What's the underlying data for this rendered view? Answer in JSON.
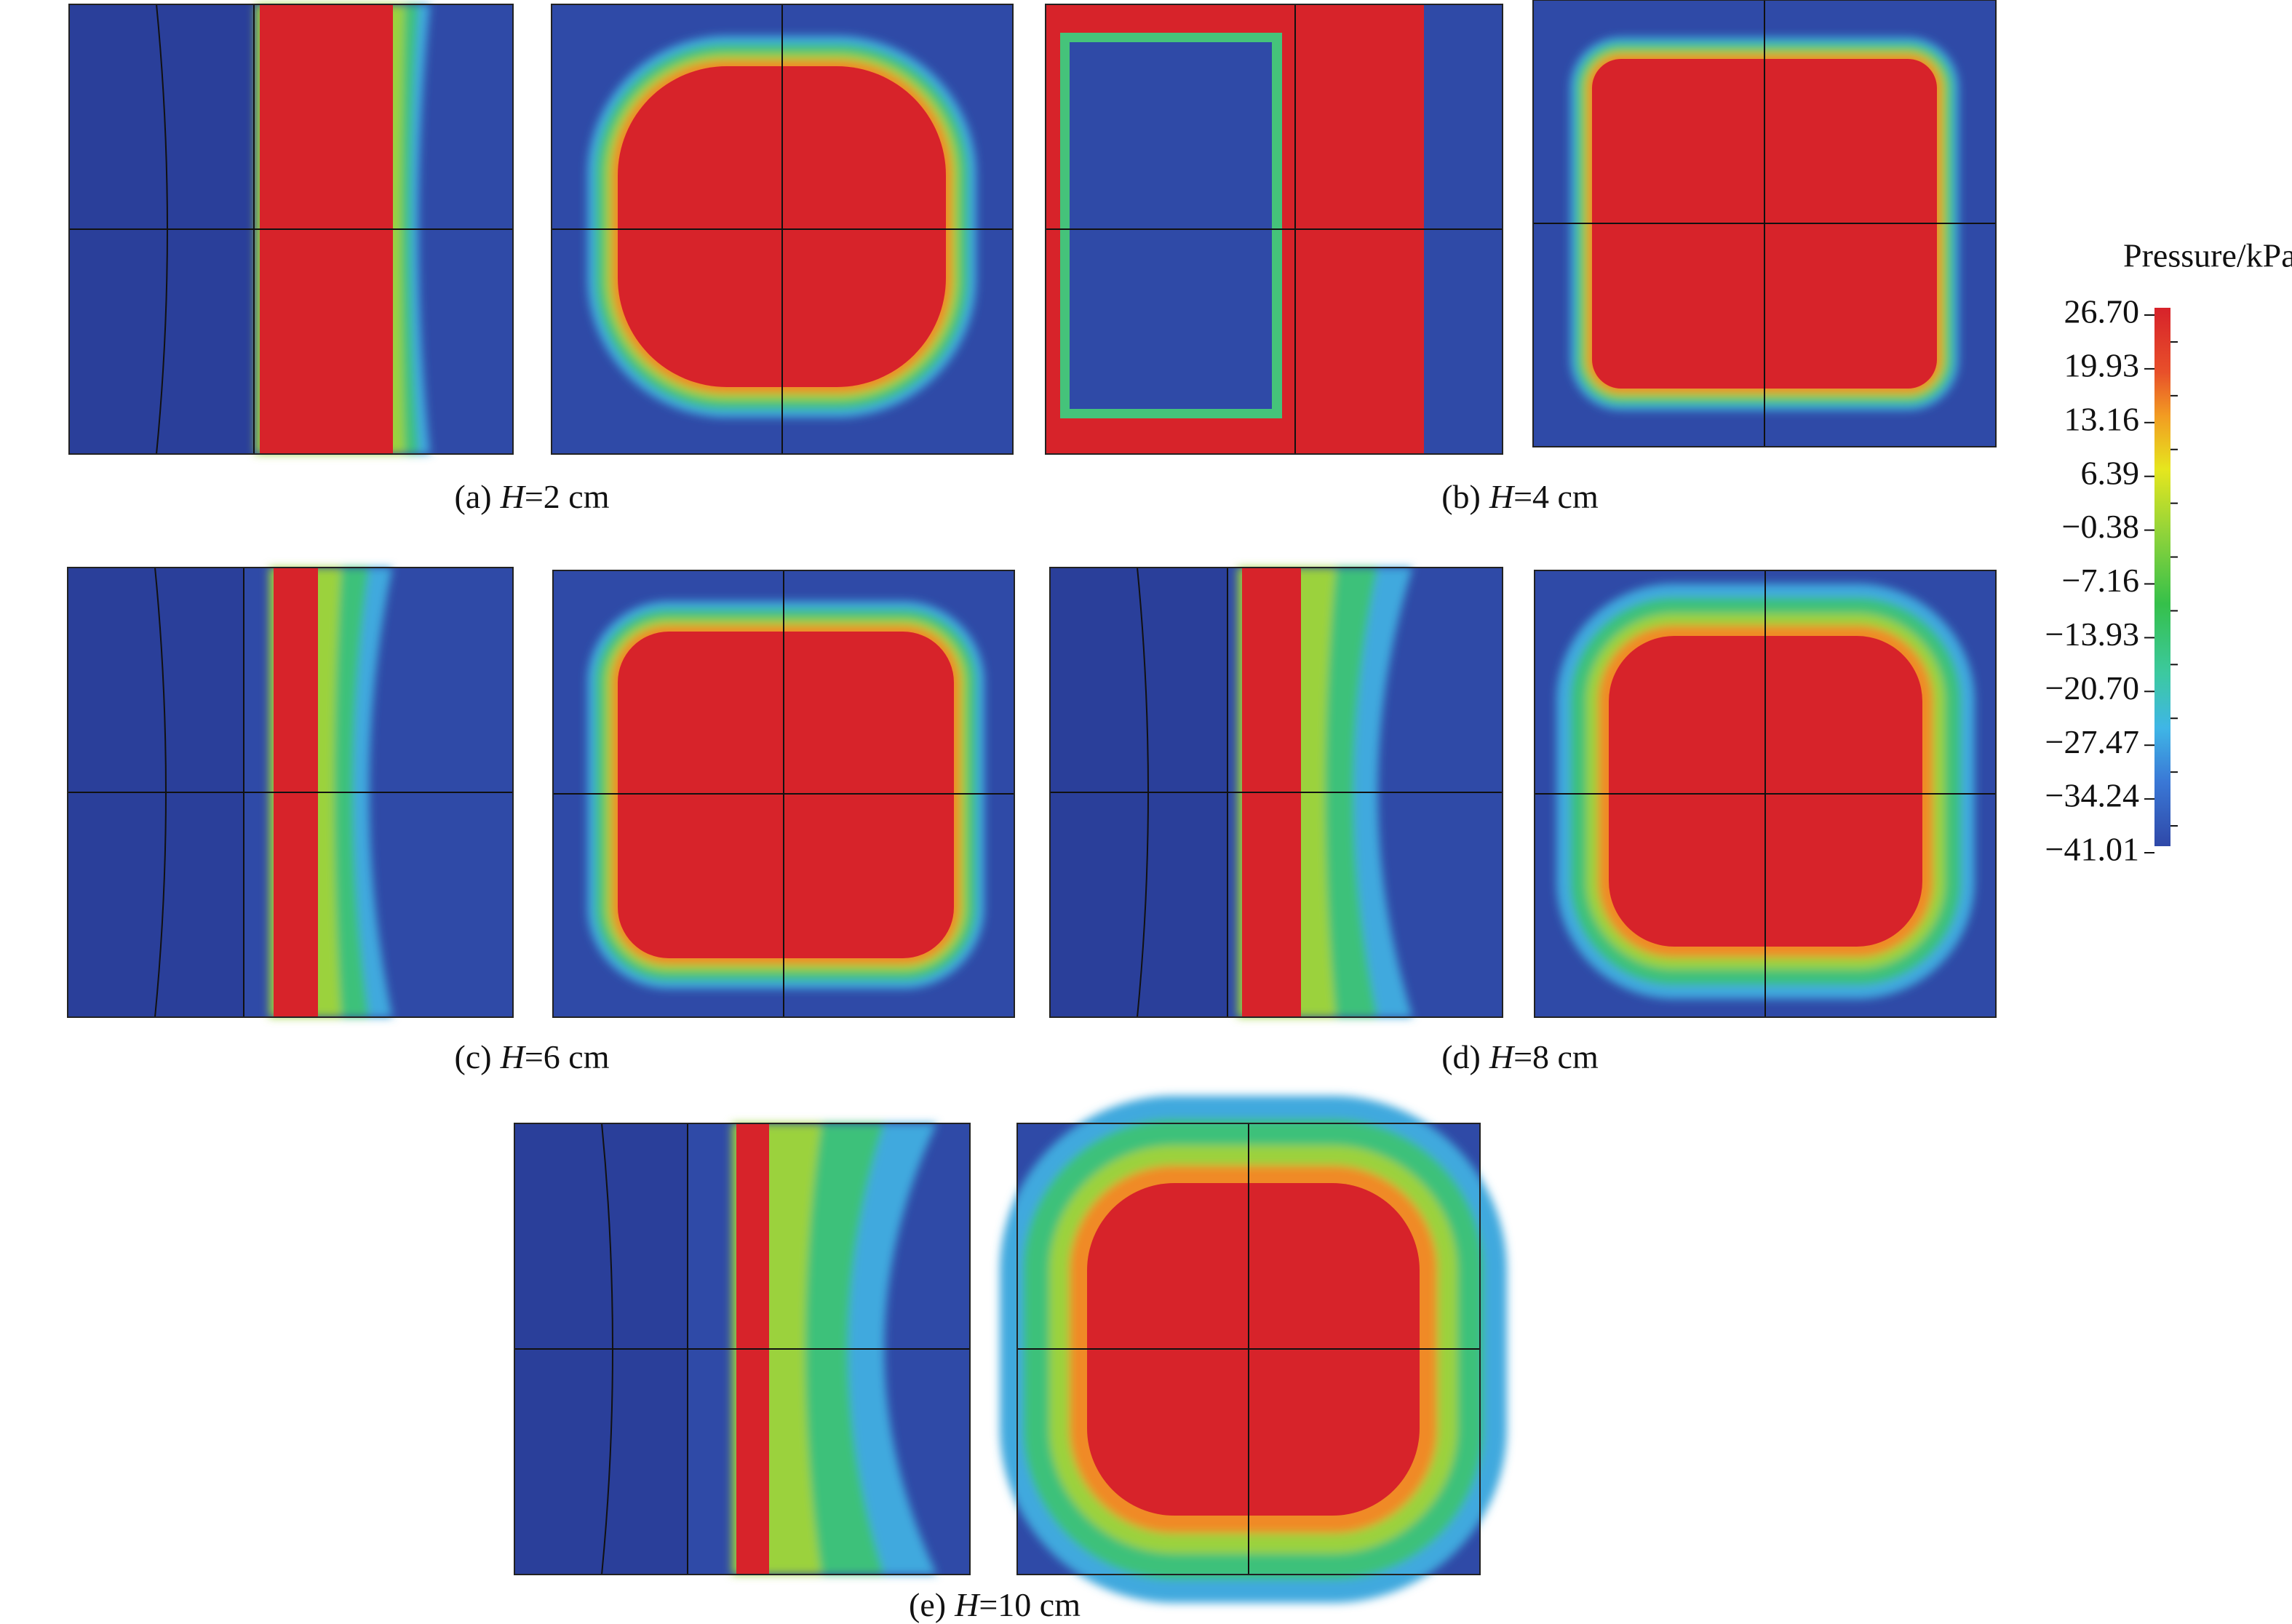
{
  "captions": [
    {
      "label": "(a)",
      "variable": "H",
      "value": "=2 cm"
    },
    {
      "label": "(b)",
      "variable": "H",
      "value": "=4 cm"
    },
    {
      "label": "(c)",
      "variable": "H",
      "value": "=6 cm"
    },
    {
      "label": "(d)",
      "variable": "H",
      "value": "=8 cm"
    },
    {
      "label": "(e)",
      "variable": "H",
      "value": "=10 cm"
    }
  ],
  "colorbar": {
    "title": "Pressure/kPa",
    "ticks": [
      "26.70",
      "19.93",
      "13.16",
      "6.39",
      "−0.38",
      "−7.16",
      "−13.93",
      "−20.70",
      "−27.47",
      "−34.24",
      "−41.01"
    ]
  }
}
